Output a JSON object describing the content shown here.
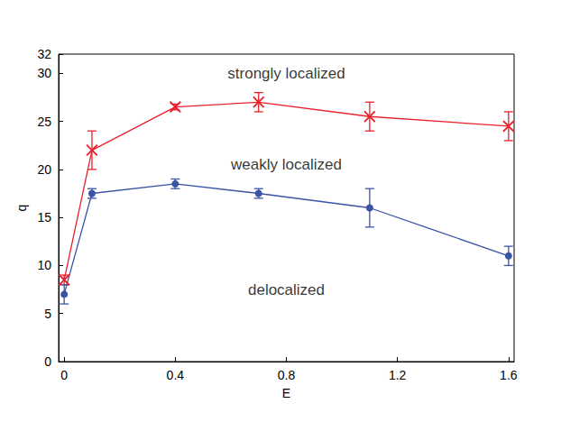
{
  "chart_data": {
    "type": "line",
    "x_label": "E",
    "y_label": "q",
    "xlim": [
      -0.02,
      1.62
    ],
    "xticks": [
      0,
      0.4,
      0.8,
      1.2,
      1.6
    ],
    "ylim": [
      0,
      32
    ],
    "yticks": [
      0,
      5,
      10,
      15,
      20,
      25,
      30
    ],
    "grid": false,
    "series": [
      {
        "color": "#e8202a",
        "marker": "x",
        "x": [
          0,
          0.1,
          0.4,
          0.7,
          1.1,
          1.6
        ],
        "values": [
          8.5,
          22,
          26.5,
          27,
          25.5,
          24.5
        ],
        "errors": [
          0.5,
          2,
          0.3,
          1,
          1.5,
          1.5
        ]
      },
      {
        "color": "#3a53a4",
        "marker": "circle",
        "x": [
          0,
          0.1,
          0.4,
          0.7,
          1.1,
          1.6
        ],
        "values": [
          7,
          17.5,
          18.5,
          17.5,
          16,
          11
        ],
        "errors": [
          1,
          0.5,
          0.5,
          0.5,
          2,
          1
        ]
      }
    ],
    "annotations": [
      {
        "text": "strongly localized",
        "x": 0.8,
        "y": 30
      },
      {
        "text": "weakly localized",
        "x": 0.8,
        "y": 20.5
      },
      {
        "text": "delocalized",
        "x": 0.8,
        "y": 7.5
      }
    ]
  }
}
